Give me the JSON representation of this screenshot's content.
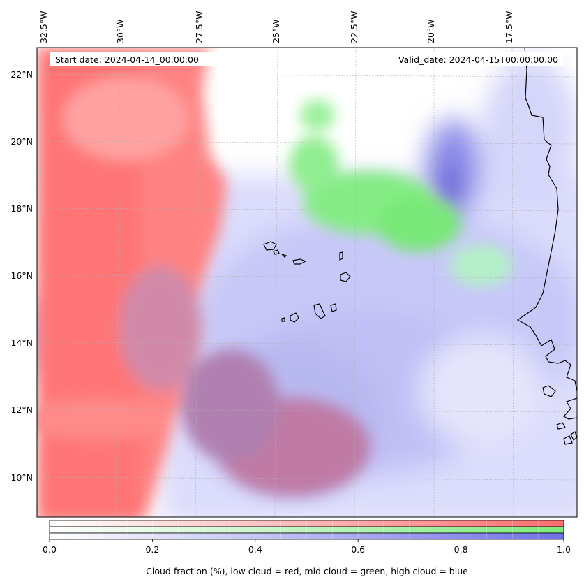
{
  "map": {
    "start_date": "Start date: 2024-04-14_00:00:00",
    "valid_date": "Valid_date: 2024-04-15T00:00:00.00",
    "lon_ticks": [
      "32.5°W",
      "30°W",
      "27.5°W",
      "25°W",
      "22.5°W",
      "20°W",
      "17.5°W"
    ],
    "lat_ticks": [
      "22°N",
      "20°N",
      "18°N",
      "16°N",
      "14°N",
      "12°N",
      "10°N"
    ],
    "layers": [
      {
        "name": "low cloud",
        "color": "#ff6e6e"
      },
      {
        "name": "mid cloud",
        "color": "#7cea7c"
      },
      {
        "name": "high cloud",
        "color": "#7070e8"
      }
    ],
    "coastline_color": "#000000"
  },
  "colorbar": {
    "ticks": [
      "0.0",
      "0.2",
      "0.4",
      "0.6",
      "0.8",
      "1.0"
    ],
    "tick_values": [
      0.0,
      0.2,
      0.4,
      0.6,
      0.8,
      1.0
    ],
    "range": [
      0.0,
      1.0
    ],
    "bars": [
      {
        "name": "low",
        "color": "#ff6e6e"
      },
      {
        "name": "mid",
        "color": "#7cea7c"
      },
      {
        "name": "high",
        "color": "#7070e8"
      }
    ],
    "label": "Cloud fraction (%), low cloud = red, mid cloud = green, high cloud = blue"
  }
}
